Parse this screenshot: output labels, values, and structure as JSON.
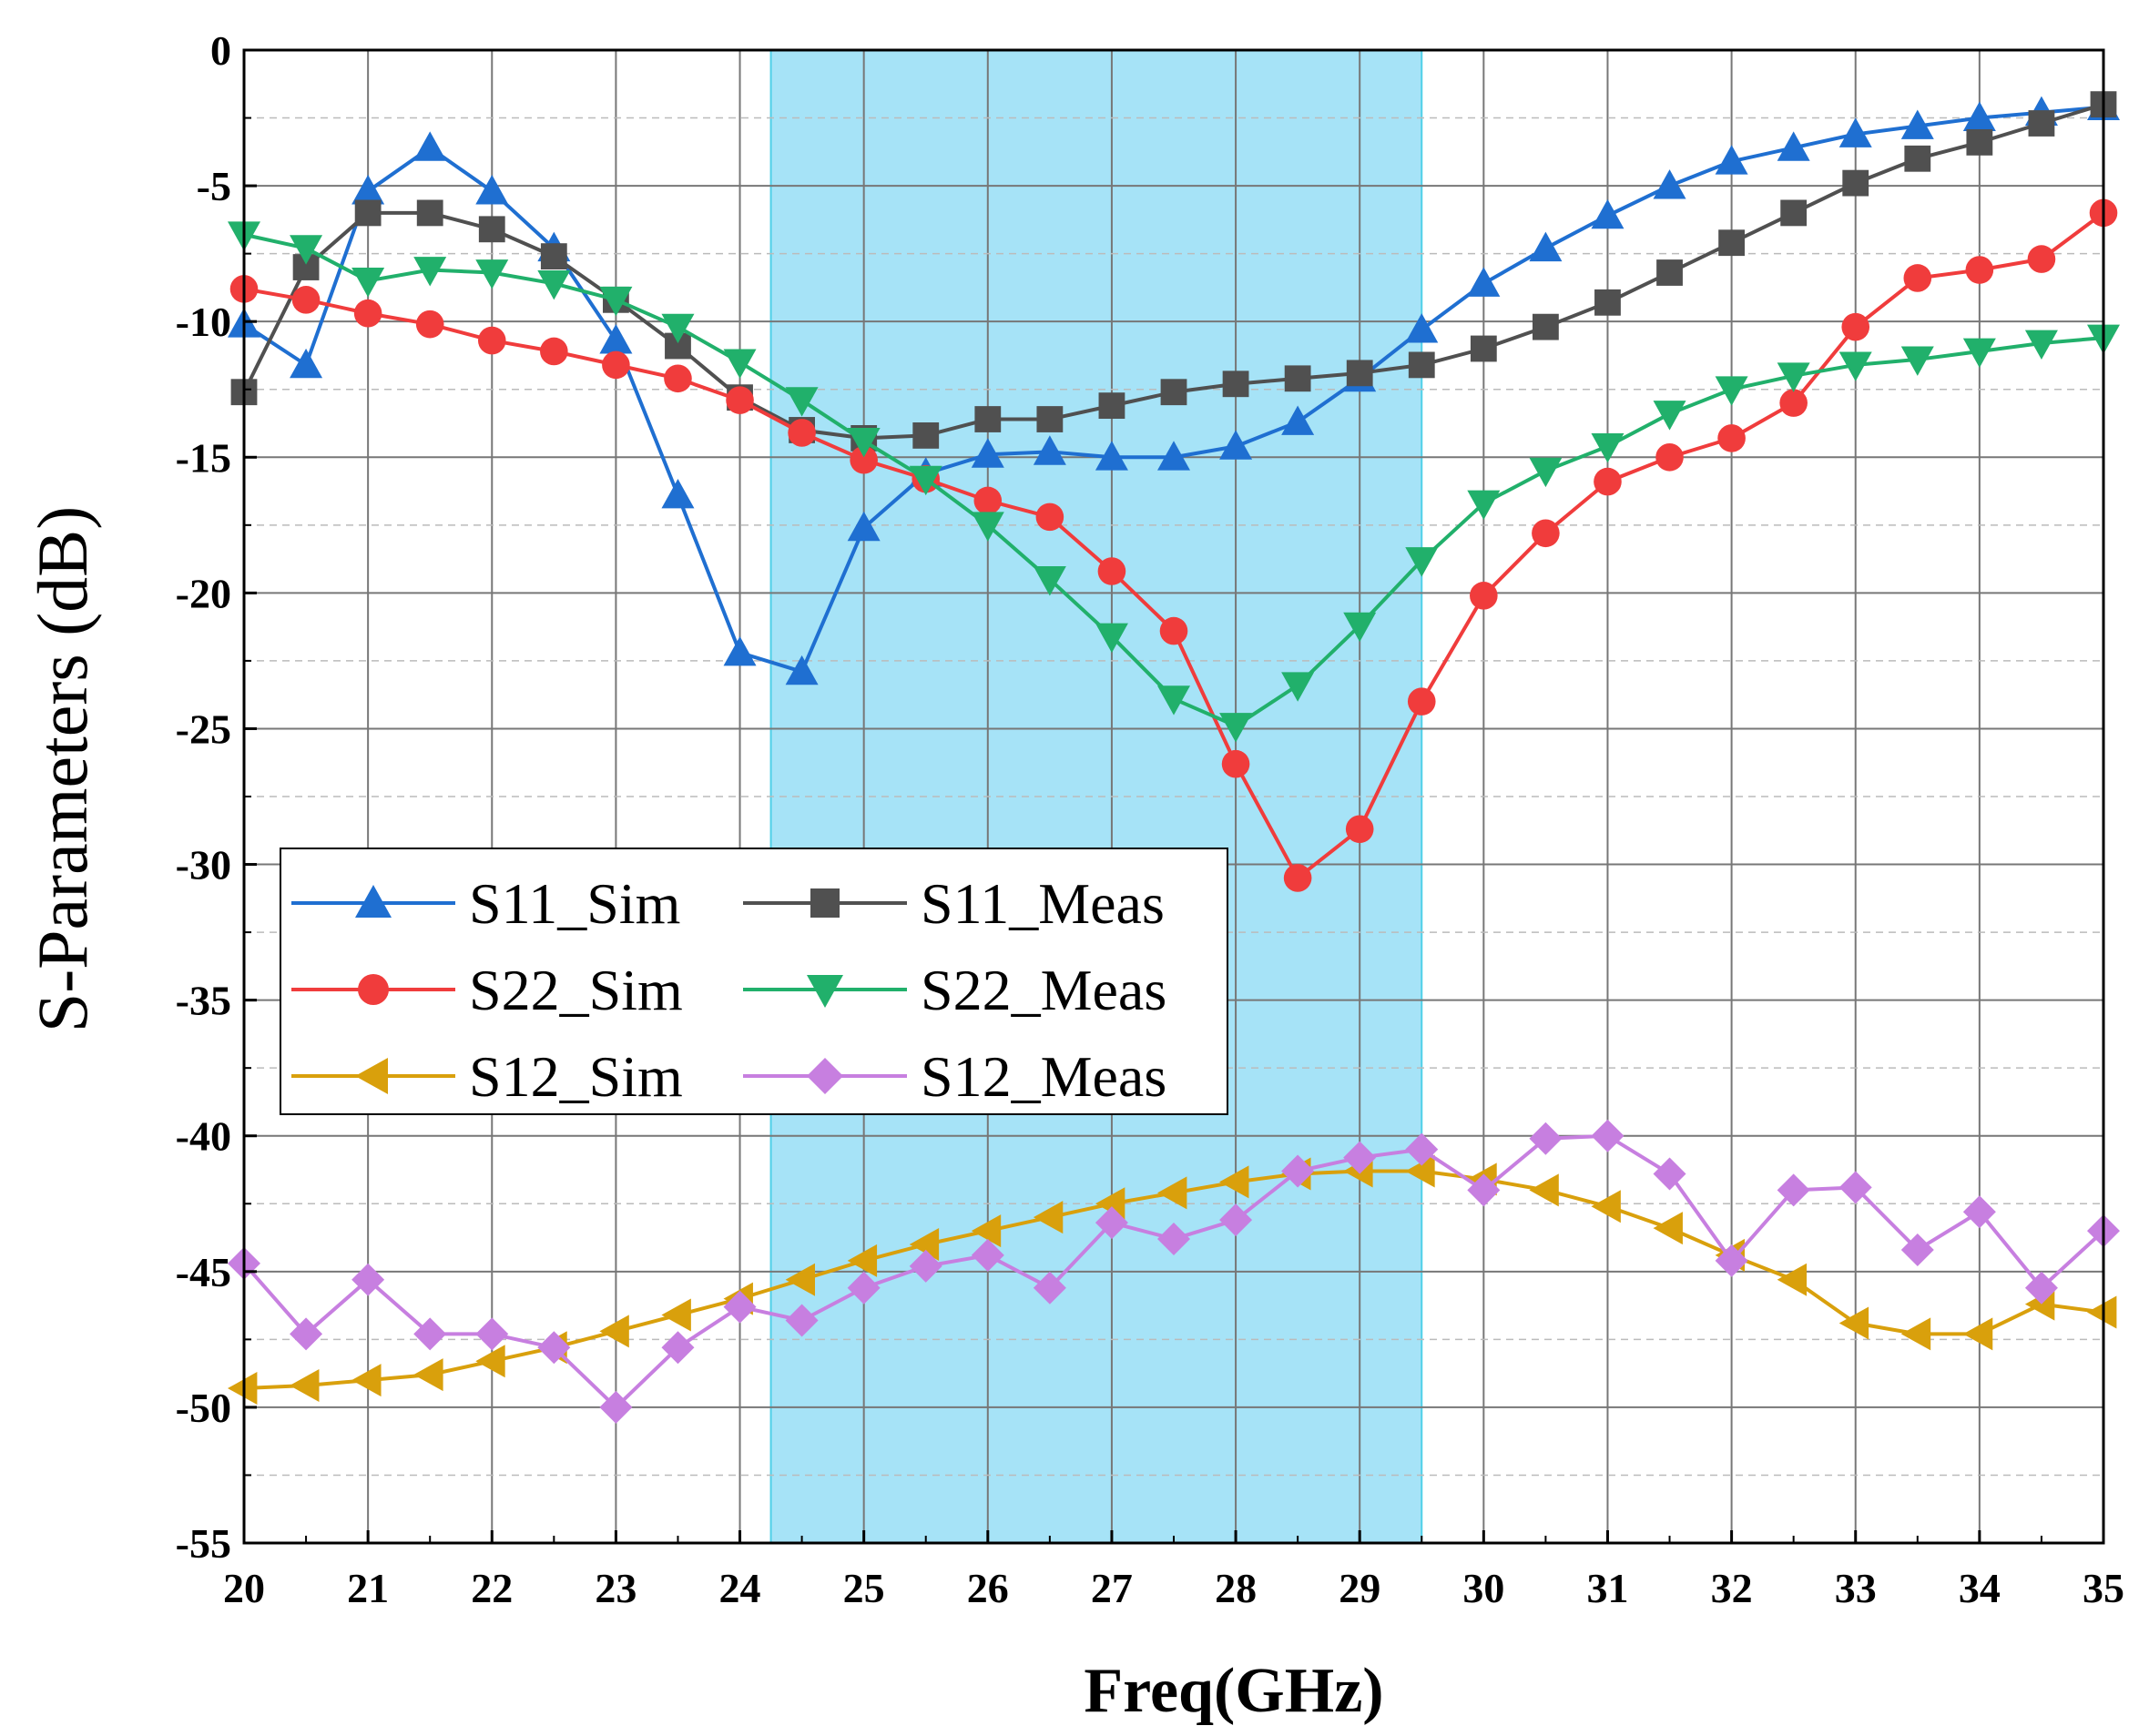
{
  "chart_data": {
    "type": "line",
    "title": "",
    "xlabel": "Freq(GHz)",
    "ylabel": "S-Parameters (dB)",
    "xlim": [
      20,
      35
    ],
    "ylim": [
      -55,
      0
    ],
    "xticks": [
      "20",
      "21",
      "22",
      "23",
      "24",
      "25",
      "26",
      "27",
      "28",
      "29",
      "30",
      "31",
      "32",
      "33",
      "34",
      "35"
    ],
    "yticks": [
      "0",
      "-5",
      "-10",
      "-15",
      "-20",
      "-25",
      "-30",
      "-35",
      "-40",
      "-45",
      "-50",
      "-55"
    ],
    "grid": true,
    "legend_position": "center-left",
    "shaded_band": {
      "from": 24.25,
      "to": 29.5,
      "color": "#a6e3f7"
    },
    "series": [
      {
        "name": "S11_Sim",
        "color": "#1f6fd1",
        "marker": "triangle-up",
        "x": [
          20,
          20.5,
          21,
          21.5,
          22,
          22.5,
          23,
          23.5,
          24,
          24.5,
          25,
          25.5,
          26,
          26.5,
          27,
          27.5,
          28,
          28.5,
          29,
          29.5,
          30,
          30.5,
          31,
          31.5,
          32,
          32.5,
          33,
          33.5,
          34,
          34.5,
          35
        ],
        "values": [
          -10.1,
          -11.6,
          -5.2,
          -3.6,
          -5.2,
          -7.3,
          -10.7,
          -16.4,
          -22.2,
          -22.9,
          -17.6,
          -15.6,
          -14.9,
          -14.8,
          -15.0,
          -15.0,
          -14.6,
          -13.7,
          -12.1,
          -10.3,
          -8.6,
          -7.3,
          -6.1,
          -5.0,
          -4.1,
          -3.6,
          -3.1,
          -2.8,
          -2.5,
          -2.3,
          -2.1
        ]
      },
      {
        "name": "S11_Meas",
        "color": "#505050",
        "marker": "square",
        "x": [
          20,
          20.5,
          21,
          21.5,
          22,
          22.5,
          23,
          23.5,
          24,
          24.5,
          25,
          25.5,
          26,
          26.5,
          27,
          27.5,
          28,
          28.5,
          29,
          29.5,
          30,
          30.5,
          31,
          31.5,
          32,
          32.5,
          33,
          33.5,
          34,
          34.5,
          35
        ],
        "values": [
          -12.6,
          -8.0,
          -6.0,
          -6.0,
          -6.6,
          -7.6,
          -9.2,
          -10.9,
          -12.8,
          -14.0,
          -14.3,
          -14.2,
          -13.6,
          -13.6,
          -13.1,
          -12.6,
          -12.3,
          -12.1,
          -11.9,
          -11.6,
          -11.0,
          -10.2,
          -9.3,
          -8.2,
          -7.1,
          -6.0,
          -4.9,
          -4.0,
          -3.4,
          -2.7,
          -2.0
        ]
      },
      {
        "name": "S22_Sim",
        "color": "#f03c3c",
        "marker": "circle",
        "x": [
          20,
          20.5,
          21,
          21.5,
          22,
          22.5,
          23,
          23.5,
          24,
          24.5,
          25,
          25.5,
          26,
          26.5,
          27,
          27.5,
          28,
          28.5,
          29,
          29.5,
          30,
          30.5,
          31,
          31.5,
          32,
          32.5,
          33,
          33.5,
          34,
          34.5,
          35
        ],
        "values": [
          -8.8,
          -9.2,
          -9.7,
          -10.1,
          -10.7,
          -11.1,
          -11.6,
          -12.1,
          -12.9,
          -14.1,
          -15.1,
          -15.8,
          -16.6,
          -17.2,
          -19.2,
          -21.4,
          -26.3,
          -30.5,
          -28.7,
          -24.0,
          -20.1,
          -17.8,
          -15.9,
          -15.0,
          -14.3,
          -13.0,
          -10.2,
          -8.4,
          -8.1,
          -7.7,
          -6.0
        ]
      },
      {
        "name": "S22_Meas",
        "color": "#21b06b",
        "marker": "triangle-down",
        "x": [
          20,
          20.5,
          21,
          21.5,
          22,
          22.5,
          23,
          23.5,
          24,
          24.5,
          25,
          25.5,
          26,
          26.5,
          27,
          27.5,
          28,
          28.5,
          29,
          29.5,
          30,
          30.5,
          31,
          31.5,
          32,
          32.5,
          33,
          33.5,
          34,
          34.5,
          35
        ],
        "values": [
          -6.8,
          -7.3,
          -8.5,
          -8.1,
          -8.2,
          -8.6,
          -9.2,
          -10.2,
          -11.5,
          -12.9,
          -14.4,
          -15.8,
          -17.5,
          -19.5,
          -21.6,
          -23.9,
          -24.9,
          -23.4,
          -21.2,
          -18.8,
          -16.7,
          -15.5,
          -14.6,
          -13.4,
          -12.5,
          -12.0,
          -11.6,
          -11.4,
          -11.1,
          -10.8,
          -10.6
        ]
      },
      {
        "name": "S12_Sim",
        "color": "#d9a00c",
        "marker": "triangle-left",
        "x": [
          20,
          20.5,
          21,
          21.5,
          22,
          22.5,
          23,
          23.5,
          24,
          24.5,
          25,
          25.5,
          26,
          26.5,
          27,
          27.5,
          28,
          28.5,
          29,
          29.5,
          30,
          30.5,
          31,
          31.5,
          32,
          32.5,
          33,
          33.5,
          34,
          34.5,
          35
        ],
        "values": [
          -49.3,
          -49.2,
          -49.0,
          -48.8,
          -48.3,
          -47.8,
          -47.2,
          -46.6,
          -46.0,
          -45.3,
          -44.6,
          -44.0,
          -43.5,
          -43.0,
          -42.5,
          -42.1,
          -41.7,
          -41.4,
          -41.3,
          -41.3,
          -41.6,
          -42.0,
          -42.6,
          -43.4,
          -44.4,
          -45.3,
          -46.9,
          -47.3,
          -47.3,
          -46.2,
          -46.5
        ]
      },
      {
        "name": "S12_Meas",
        "color": "#c77fe0",
        "marker": "diamond",
        "x": [
          20,
          20.5,
          21,
          21.5,
          22,
          22.5,
          23,
          23.5,
          24,
          24.5,
          25,
          25.5,
          26,
          26.5,
          27,
          27.5,
          28,
          28.5,
          29,
          29.5,
          30,
          30.5,
          31,
          31.5,
          32,
          32.5,
          33,
          33.5,
          34,
          34.5,
          35
        ],
        "values": [
          -44.7,
          -47.3,
          -45.3,
          -47.3,
          -47.3,
          -47.8,
          -50.0,
          -47.8,
          -46.3,
          -46.8,
          -45.6,
          -44.8,
          -44.4,
          -45.6,
          -43.2,
          -43.8,
          -43.1,
          -41.3,
          -40.8,
          -40.5,
          -42.0,
          -40.1,
          -40.0,
          -41.4,
          -44.6,
          -42.0,
          -41.9,
          -44.2,
          -42.8,
          -45.6,
          -43.5
        ]
      }
    ]
  }
}
